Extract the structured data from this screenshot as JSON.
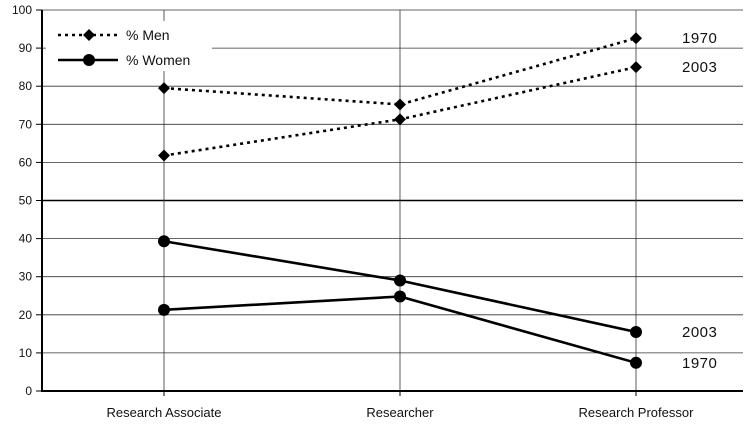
{
  "chart_data": {
    "type": "line",
    "categories": [
      "Research Associate",
      "Researcher",
      "Research Professor"
    ],
    "ylim": [
      0,
      100
    ],
    "yticks": [
      0,
      10,
      20,
      30,
      40,
      50,
      60,
      70,
      80,
      90,
      100
    ],
    "grid": true,
    "legend_position": "top-left",
    "series": [
      {
        "name": "% Men",
        "group": "men",
        "year": "1970",
        "values": [
          79.5,
          75.2,
          92.6
        ],
        "style": "dotted",
        "marker": "diamond"
      },
      {
        "name": "% Men",
        "group": "men",
        "year": "2003",
        "values": [
          61.8,
          71.3,
          85.0
        ],
        "style": "dotted",
        "marker": "diamond"
      },
      {
        "name": "% Women",
        "group": "women",
        "year": "1970",
        "values": [
          21.3,
          24.8,
          7.4
        ],
        "style": "solid",
        "marker": "circle"
      },
      {
        "name": "% Women",
        "group": "women",
        "year": "2003",
        "values": [
          39.3,
          29.0,
          15.5
        ],
        "style": "solid",
        "marker": "circle"
      }
    ],
    "legend": [
      {
        "label": "% Men",
        "style": "dotted",
        "marker": "diamond"
      },
      {
        "label": "% Women",
        "style": "solid",
        "marker": "circle"
      }
    ],
    "end_labels": [
      {
        "text": "1970",
        "series_index": 0
      },
      {
        "text": "2003",
        "series_index": 1
      },
      {
        "text": "2003",
        "series_index": 3
      },
      {
        "text": "1970",
        "series_index": 2
      }
    ]
  }
}
